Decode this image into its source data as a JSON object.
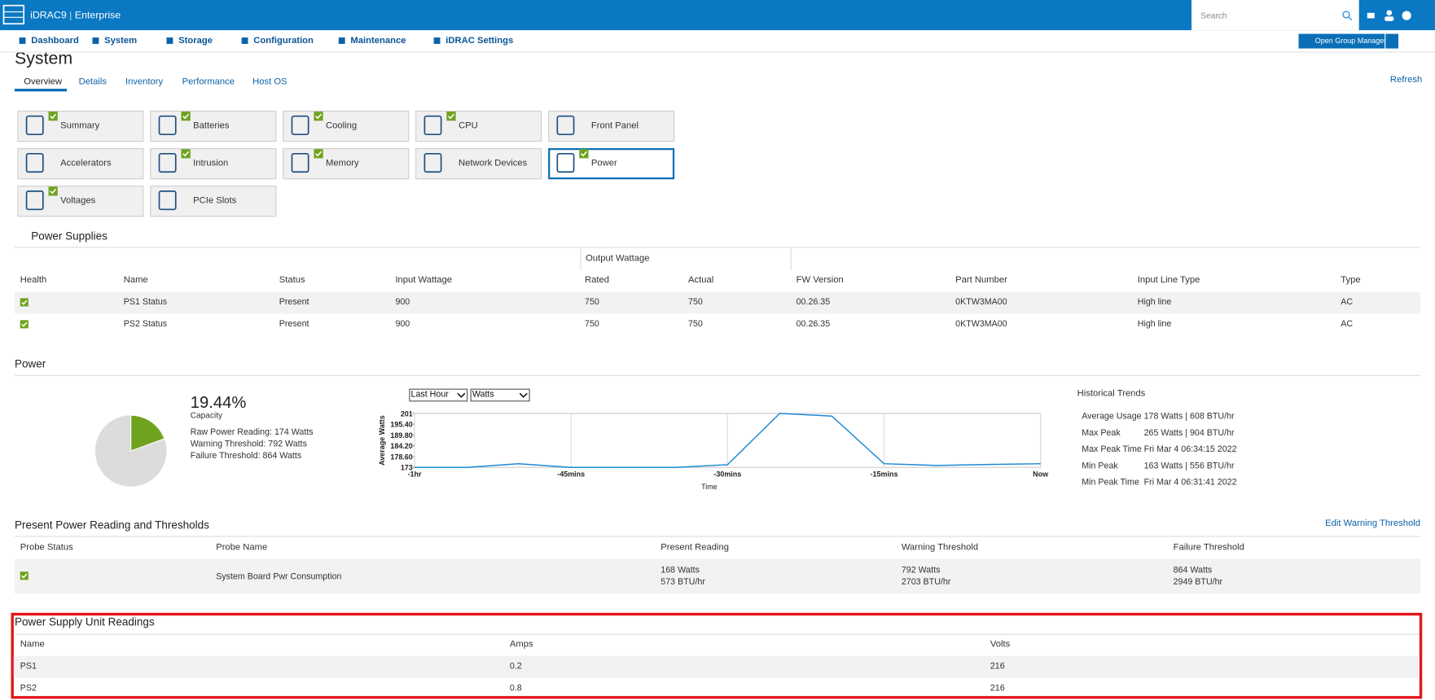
{
  "header": {
    "brand": "iDRAC9",
    "edition": "Enterprise",
    "search_placeholder": "Search"
  },
  "nav": {
    "items": [
      "Dashboard",
      "System",
      "Storage",
      "Configuration",
      "Maintenance",
      "iDRAC Settings"
    ],
    "button": "Open Group Manager"
  },
  "page": {
    "title": "System",
    "tabs": [
      "Overview",
      "Details",
      "Inventory",
      "Performance",
      "Host OS"
    ],
    "active_tab": 0,
    "refresh": "Refresh"
  },
  "tiles": [
    {
      "label": "Summary",
      "ok": true
    },
    {
      "label": "Batteries",
      "ok": true
    },
    {
      "label": "Cooling",
      "ok": true
    },
    {
      "label": "CPU",
      "ok": true
    },
    {
      "label": "Front Panel",
      "ok": false
    },
    {
      "label": "Accelerators",
      "ok": false
    },
    {
      "label": "Intrusion",
      "ok": true
    },
    {
      "label": "Memory",
      "ok": true
    },
    {
      "label": "Network Devices",
      "ok": false
    },
    {
      "label": "Power",
      "ok": true,
      "selected": true
    },
    {
      "label": "Voltages",
      "ok": true
    },
    {
      "label": "PCIe Slots",
      "ok": false
    }
  ],
  "power_supplies": {
    "title": "Power Supplies",
    "group_header": "Output Wattage",
    "columns": [
      "Health",
      "Name",
      "Status",
      "Input Wattage",
      "Rated",
      "Actual",
      "FW Version",
      "Part Number",
      "Input Line Type",
      "Type"
    ],
    "rows": [
      [
        "PS1 Status",
        "Present",
        "900",
        "750",
        "750",
        "00.26.35",
        "0KTW3MA00",
        "High line",
        "AC"
      ],
      [
        "PS2 Status",
        "Present",
        "900",
        "750",
        "750",
        "00.26.35",
        "0KTW3MA00",
        "High line",
        "AC"
      ]
    ]
  },
  "power": {
    "title": "Power",
    "capacity": 19.44,
    "capacity_label": "19.44%",
    "capacity_caption": "Capacity",
    "colors": [
      "#6fa31f",
      "#dcdcdc"
    ],
    "readings": [
      "Raw Power Reading: 174 Watts",
      "Warning Threshold: 792 Watts",
      "Failure Threshold: 864 Watts"
    ],
    "selects": [
      "Last Hour",
      "Watts"
    ],
    "chart": {
      "type": "line",
      "xlabel": "Time",
      "ylabel": "Average Watts",
      "color": "#1a8ad4",
      "x": [
        -60,
        -55,
        -50,
        -45,
        -40,
        -35,
        -30,
        -25,
        -20,
        -15,
        -10,
        -5,
        0
      ],
      "values": [
        173,
        173,
        174.9,
        173,
        173,
        173,
        174.4,
        201,
        199.6,
        174.9,
        174,
        174.5,
        174.9
      ],
      "xlim": [
        -60,
        0
      ],
      "xticks": [
        {
          "value": -60,
          "label": "-1hr"
        },
        {
          "value": -45,
          "label": "-45mins"
        },
        {
          "value": -30,
          "label": "-30mins"
        },
        {
          "value": -15,
          "label": "-15mins"
        },
        {
          "value": 0,
          "label": "Now"
        }
      ],
      "ylim": [
        173,
        201
      ],
      "yticks": [
        201,
        {
          "value": 195.4,
          "label": "195.40"
        },
        {
          "value": 189.8,
          "label": "189.80"
        },
        {
          "value": 184.2,
          "label": "184.20"
        },
        {
          "value": 178.6,
          "label": "178.60"
        },
        173
      ]
    },
    "trends_title": "Historical Trends",
    "trends": [
      [
        "Average Usage",
        "178 Watts | 608 BTU/hr"
      ],
      [
        "Max Peak",
        "265 Watts | 904 BTU/hr"
      ],
      [
        "Max Peak Time",
        "Fri Mar 4 06:34:15 2022"
      ],
      [
        "Min Peak",
        "163 Watts | 556 BTU/hr"
      ],
      [
        "Min Peak Time",
        "Fri Mar 4 06:31:41 2022"
      ]
    ]
  },
  "thresholds": {
    "title": "Present Power Reading and Thresholds",
    "link": "Edit Warning Threshold",
    "columns": [
      "Probe Status",
      "Probe Name",
      "Present Reading",
      "Warning Threshold",
      "Failure Threshold"
    ],
    "row": {
      "name": "System Board Pwr Consumption",
      "present": [
        "168 Watts",
        "573 BTU/hr"
      ],
      "warning": [
        "792 Watts",
        "2703 BTU/hr"
      ],
      "failure": [
        "864 Watts",
        "2949 BTU/hr"
      ]
    }
  },
  "psu_readings": {
    "title": "Power Supply Unit Readings",
    "columns": [
      "Name",
      "Amps",
      "Volts"
    ],
    "rows": [
      [
        "PS1",
        "0.2",
        "216"
      ],
      [
        "PS2",
        "0.8",
        "216"
      ]
    ]
  }
}
